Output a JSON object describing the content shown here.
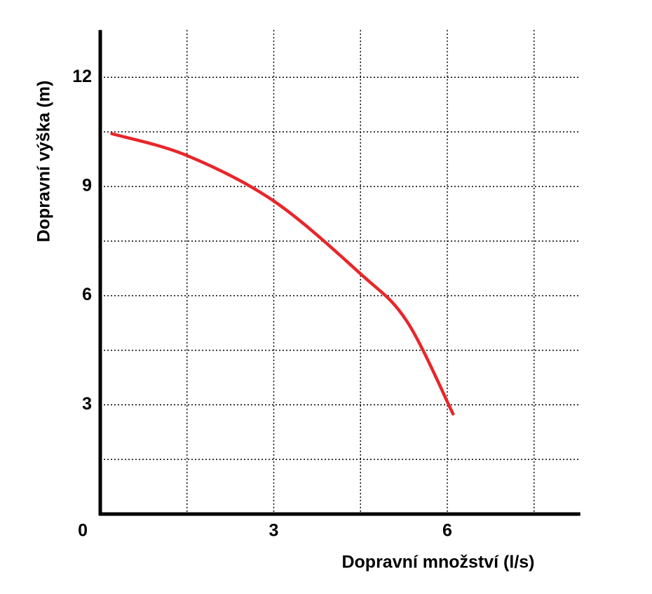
{
  "chart_data": {
    "type": "line",
    "x_label": "Dopravní množství (l/s)",
    "y_label": "Dopravní výška (m)",
    "x": [
      0.2,
      1.5,
      3,
      4.5,
      5.3,
      6.1
    ],
    "series": [
      {
        "color": "#e8262a",
        "values": [
          10.45,
          9.85,
          8.6,
          6.6,
          5.3,
          2.75
        ]
      }
    ],
    "xlim": [
      0,
      8.3
    ],
    "ylim": [
      0,
      13.3
    ],
    "xticks": [
      0,
      3,
      6
    ],
    "yticks": [
      3,
      6,
      9,
      12
    ],
    "xgrid": [
      1.5,
      3,
      4.5,
      6,
      7.5
    ],
    "ygrid": [
      1.5,
      3,
      4.5,
      6,
      7.5,
      9,
      10.5,
      12
    ],
    "grid": true
  }
}
